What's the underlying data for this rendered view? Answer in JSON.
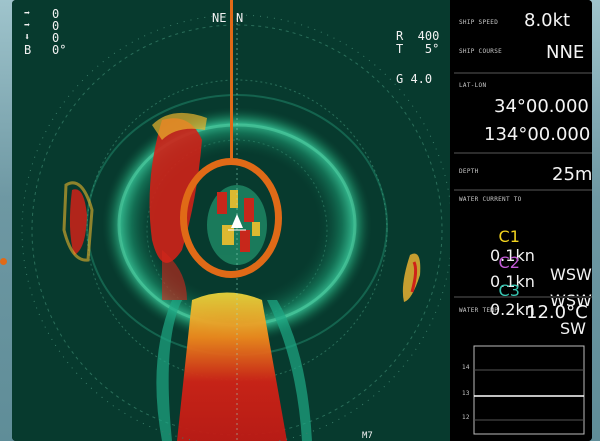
{
  "sonar": {
    "heading_label": "NE",
    "north_label": "N",
    "readouts_left": [
      "0",
      "0",
      "0",
      "0°"
    ],
    "left_prefix_bottom": "B",
    "range": "R  400",
    "tilt": "T   5°",
    "gain": "G 4.0",
    "bottom_label": "M7"
  },
  "panel": {
    "ship_speed_label": "SHIP SPEED",
    "ship_speed": "8.0kt",
    "ship_course_label": "SHIP COURSE",
    "ship_course": "NNE",
    "latlon_label": "LAT-LON",
    "lat": "34°00.000",
    "lon": "134°00.000",
    "depth_label": "DEPTH",
    "depth": "25m",
    "current_label": "WATER CURRENT TO",
    "currents": [
      {
        "id": "C1",
        "speed": "0.1kn",
        "dir": "WSW",
        "color": "#f1d21e"
      },
      {
        "id": "C2",
        "speed": "0.1kn",
        "dir": "WSW",
        "color": "#c25ad6"
      },
      {
        "id": "C3",
        "speed": "0.2kn",
        "dir": "SW",
        "color": "#38c6b3"
      }
    ],
    "water_temp_label": "WATER TEMP",
    "water_temp": "12.0°C",
    "temp_axis": [
      "14",
      "13",
      "12"
    ]
  },
  "colors": {
    "marker": "#e06a17",
    "sonar_bg": "#073a2e"
  }
}
